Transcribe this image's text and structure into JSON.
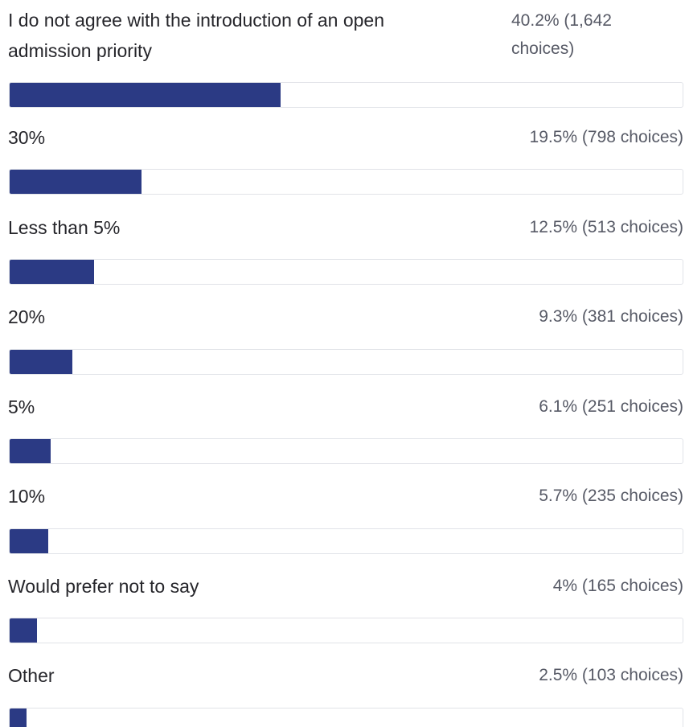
{
  "chart_data": {
    "type": "bar",
    "orientation": "horizontal",
    "bar_color": "#2b3a84",
    "items": [
      {
        "label": "I do not agree with the introduction of an open admission priority",
        "percent": 40.2,
        "value_text": "40.2% (1,642 choices)"
      },
      {
        "label": "30%",
        "percent": 19.5,
        "value_text": "19.5% (798 choices)"
      },
      {
        "label": "Less than 5%",
        "percent": 12.5,
        "value_text": "12.5% (513 choices)"
      },
      {
        "label": "20%",
        "percent": 9.3,
        "value_text": "9.3% (381 choices)"
      },
      {
        "label": "5%",
        "percent": 6.1,
        "value_text": "6.1% (251 choices)"
      },
      {
        "label": "10%",
        "percent": 5.7,
        "value_text": "5.7% (235 choices)"
      },
      {
        "label": "Would prefer not to say",
        "percent": 4,
        "value_text": "4% (165 choices)"
      },
      {
        "label": "Other",
        "percent": 2.5,
        "value_text": "2.5% (103 choices)"
      }
    ]
  }
}
